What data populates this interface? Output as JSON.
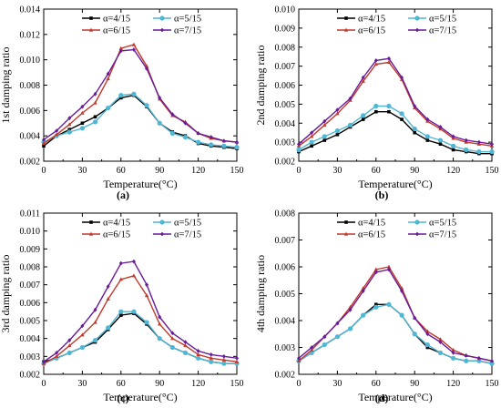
{
  "legend_labels": [
    "α=4/15",
    "α=5/15",
    "α=6/15",
    "α=7/15"
  ],
  "colors": {
    "alpha4": "#000000",
    "alpha5": "#4fb6d3",
    "alpha6": "#c0392b",
    "alpha7": "#6a1b9a"
  },
  "chart_data": [
    {
      "id": "a",
      "type": "line",
      "panel_label": "(a)",
      "xlabel": "Temperature(°C)",
      "ylabel": "1st damping ratio",
      "xlim": [
        0,
        150
      ],
      "ylim": [
        0.002,
        0.014
      ],
      "xticks": [
        0,
        30,
        60,
        90,
        120,
        150
      ],
      "yticks": [
        0.002,
        0.004,
        0.006,
        0.008,
        0.01,
        0.012,
        0.014
      ],
      "ytick_labels": [
        "0.002",
        "0.004",
        "0.006",
        "0.008",
        "0.010",
        "0.012",
        "0.014"
      ],
      "legend": "top",
      "x": [
        0,
        10,
        20,
        30,
        40,
        50,
        60,
        70,
        80,
        90,
        100,
        110,
        120,
        130,
        140,
        150
      ],
      "series": [
        {
          "name": "α=4/15",
          "color_key": "alpha4",
          "marker": "square",
          "values": [
            0.0032,
            0.004,
            0.0045,
            0.005,
            0.0055,
            0.0062,
            0.007,
            0.0072,
            0.0063,
            0.005,
            0.0043,
            0.004,
            0.0034,
            0.0032,
            0.0031,
            0.003
          ]
        },
        {
          "name": "α=5/15",
          "color_key": "alpha5",
          "marker": "circle",
          "values": [
            0.0035,
            0.004,
            0.0043,
            0.0046,
            0.0051,
            0.0062,
            0.0072,
            0.0073,
            0.0064,
            0.005,
            0.0042,
            0.0039,
            0.0035,
            0.0033,
            0.0032,
            0.0031
          ]
        },
        {
          "name": "α=6/15",
          "color_key": "alpha6",
          "marker": "triangle",
          "values": [
            0.0034,
            0.0041,
            0.0049,
            0.0058,
            0.0066,
            0.0085,
            0.0109,
            0.0112,
            0.0095,
            0.0069,
            0.0056,
            0.0051,
            0.0042,
            0.0038,
            0.0036,
            0.0035
          ]
        },
        {
          "name": "α=7/15",
          "color_key": "alpha7",
          "marker": "diamond",
          "values": [
            0.0037,
            0.0044,
            0.0054,
            0.0063,
            0.0073,
            0.0089,
            0.0107,
            0.0108,
            0.0093,
            0.007,
            0.0057,
            0.005,
            0.0042,
            0.0039,
            0.0036,
            0.0035
          ]
        }
      ]
    },
    {
      "id": "b",
      "type": "line",
      "panel_label": "(b)",
      "xlabel": "Temperature(°C)",
      "ylabel": "2nd damping ratio",
      "xlim": [
        0,
        150
      ],
      "ylim": [
        0.002,
        0.01
      ],
      "xticks": [
        0,
        30,
        60,
        90,
        120,
        150
      ],
      "yticks": [
        0.002,
        0.003,
        0.004,
        0.005,
        0.006,
        0.007,
        0.008,
        0.009,
        0.01
      ],
      "ytick_labels": [
        "0.002",
        "0.003",
        "0.004",
        "0.005",
        "0.006",
        "0.007",
        "0.008",
        "0.009",
        "0.010"
      ],
      "legend": "top",
      "x": [
        0,
        10,
        20,
        30,
        40,
        50,
        60,
        70,
        80,
        90,
        100,
        110,
        120,
        130,
        140,
        150
      ],
      "series": [
        {
          "name": "α=4/15",
          "color_key": "alpha4",
          "marker": "square",
          "values": [
            0.0025,
            0.0028,
            0.0031,
            0.0034,
            0.0038,
            0.0042,
            0.0046,
            0.0046,
            0.0042,
            0.0035,
            0.0031,
            0.0029,
            0.0026,
            0.0025,
            0.0024,
            0.0024
          ]
        },
        {
          "name": "α=5/15",
          "color_key": "alpha5",
          "marker": "circle",
          "values": [
            0.0026,
            0.003,
            0.0033,
            0.0036,
            0.0039,
            0.0044,
            0.0049,
            0.0049,
            0.0045,
            0.0037,
            0.0033,
            0.0031,
            0.0028,
            0.0026,
            0.0025,
            0.0025
          ]
        },
        {
          "name": "α=6/15",
          "color_key": "alpha6",
          "marker": "triangle",
          "values": [
            0.0028,
            0.0033,
            0.0039,
            0.0045,
            0.0052,
            0.0062,
            0.0071,
            0.0072,
            0.0063,
            0.0048,
            0.0041,
            0.0037,
            0.0032,
            0.003,
            0.0029,
            0.0028
          ]
        },
        {
          "name": "α=7/15",
          "color_key": "alpha7",
          "marker": "diamond",
          "values": [
            0.0029,
            0.0035,
            0.0041,
            0.0047,
            0.0053,
            0.0064,
            0.0073,
            0.0074,
            0.0064,
            0.0049,
            0.0042,
            0.0038,
            0.0033,
            0.0031,
            0.003,
            0.0029
          ]
        }
      ]
    },
    {
      "id": "c",
      "type": "line",
      "panel_label": "(c)",
      "xlabel": "Temperature(°C)",
      "ylabel": "3rd damping ratio",
      "xlim": [
        0,
        150
      ],
      "ylim": [
        0.002,
        0.011
      ],
      "xticks": [
        0,
        30,
        60,
        90,
        120,
        150
      ],
      "yticks": [
        0.002,
        0.003,
        0.004,
        0.005,
        0.006,
        0.007,
        0.008,
        0.009,
        0.01,
        0.011
      ],
      "ytick_labels": [
        "0.002",
        "0.003",
        "0.004",
        "0.005",
        "0.006",
        "0.007",
        "0.008",
        "0.009",
        "0.010",
        "0.011"
      ],
      "legend": "top",
      "x": [
        0,
        10,
        20,
        30,
        40,
        50,
        60,
        70,
        80,
        90,
        100,
        110,
        120,
        130,
        140,
        150
      ],
      "series": [
        {
          "name": "α=4/15",
          "color_key": "alpha4",
          "marker": "square",
          "values": [
            0.0027,
            0.0029,
            0.0032,
            0.0035,
            0.0038,
            0.0045,
            0.0053,
            0.0054,
            0.0048,
            0.004,
            0.0035,
            0.0032,
            0.0029,
            0.0027,
            0.0026,
            0.0026
          ]
        },
        {
          "name": "α=5/15",
          "color_key": "alpha5",
          "marker": "circle",
          "values": [
            0.0026,
            0.0029,
            0.0032,
            0.0035,
            0.0039,
            0.0046,
            0.0055,
            0.0055,
            0.0049,
            0.004,
            0.0035,
            0.0032,
            0.0029,
            0.0027,
            0.0026,
            0.0026
          ]
        },
        {
          "name": "α=6/15",
          "color_key": "alpha6",
          "marker": "triangle",
          "values": [
            0.0026,
            0.003,
            0.0036,
            0.0042,
            0.0049,
            0.0062,
            0.0073,
            0.0075,
            0.0064,
            0.0048,
            0.004,
            0.0036,
            0.0031,
            0.0029,
            0.0028,
            0.0027
          ]
        },
        {
          "name": "α=7/15",
          "color_key": "alpha7",
          "marker": "diamond",
          "values": [
            0.0027,
            0.0032,
            0.0039,
            0.0047,
            0.0056,
            0.0069,
            0.0082,
            0.0083,
            0.007,
            0.0052,
            0.0043,
            0.0038,
            0.0033,
            0.0031,
            0.003,
            0.0029
          ]
        }
      ]
    },
    {
      "id": "d",
      "type": "line",
      "panel_label": "(d)",
      "xlabel": "Temperature(°C)",
      "ylabel": "4th damping ratio",
      "xlim": [
        0,
        150
      ],
      "ylim": [
        0.002,
        0.008
      ],
      "xticks": [
        0,
        30,
        60,
        90,
        120,
        150
      ],
      "yticks": [
        0.002,
        0.003,
        0.004,
        0.005,
        0.006,
        0.007,
        0.008
      ],
      "ytick_labels": [
        "0.002",
        "0.003",
        "0.004",
        "0.005",
        "0.006",
        "0.007",
        "0.008"
      ],
      "legend": "top",
      "x": [
        0,
        10,
        20,
        30,
        40,
        50,
        60,
        70,
        80,
        90,
        100,
        110,
        120,
        130,
        140,
        150
      ],
      "series": [
        {
          "name": "α=4/15",
          "color_key": "alpha4",
          "marker": "square",
          "values": [
            0.0025,
            0.0028,
            0.0031,
            0.0034,
            0.0037,
            0.0042,
            0.0046,
            0.0046,
            0.0042,
            0.0035,
            0.003,
            0.0028,
            0.0026,
            0.0025,
            0.0025,
            0.0024
          ]
        },
        {
          "name": "α=5/15",
          "color_key": "alpha5",
          "marker": "circle",
          "values": [
            0.0025,
            0.0028,
            0.0031,
            0.0034,
            0.0037,
            0.0042,
            0.0045,
            0.0046,
            0.0042,
            0.0035,
            0.0031,
            0.0028,
            0.0026,
            0.0025,
            0.0025,
            0.0024
          ]
        },
        {
          "name": "α=6/15",
          "color_key": "alpha6",
          "marker": "triangle",
          "values": [
            0.0025,
            0.0029,
            0.0034,
            0.0039,
            0.0045,
            0.0052,
            0.0059,
            0.006,
            0.0052,
            0.0041,
            0.0036,
            0.0033,
            0.0029,
            0.0027,
            0.0026,
            0.0025
          ]
        },
        {
          "name": "α=7/15",
          "color_key": "alpha7",
          "marker": "diamond",
          "values": [
            0.0026,
            0.003,
            0.0034,
            0.0039,
            0.0044,
            0.0051,
            0.0058,
            0.0059,
            0.0051,
            0.0041,
            0.0035,
            0.0032,
            0.0028,
            0.0027,
            0.0026,
            0.0025
          ]
        }
      ]
    }
  ]
}
